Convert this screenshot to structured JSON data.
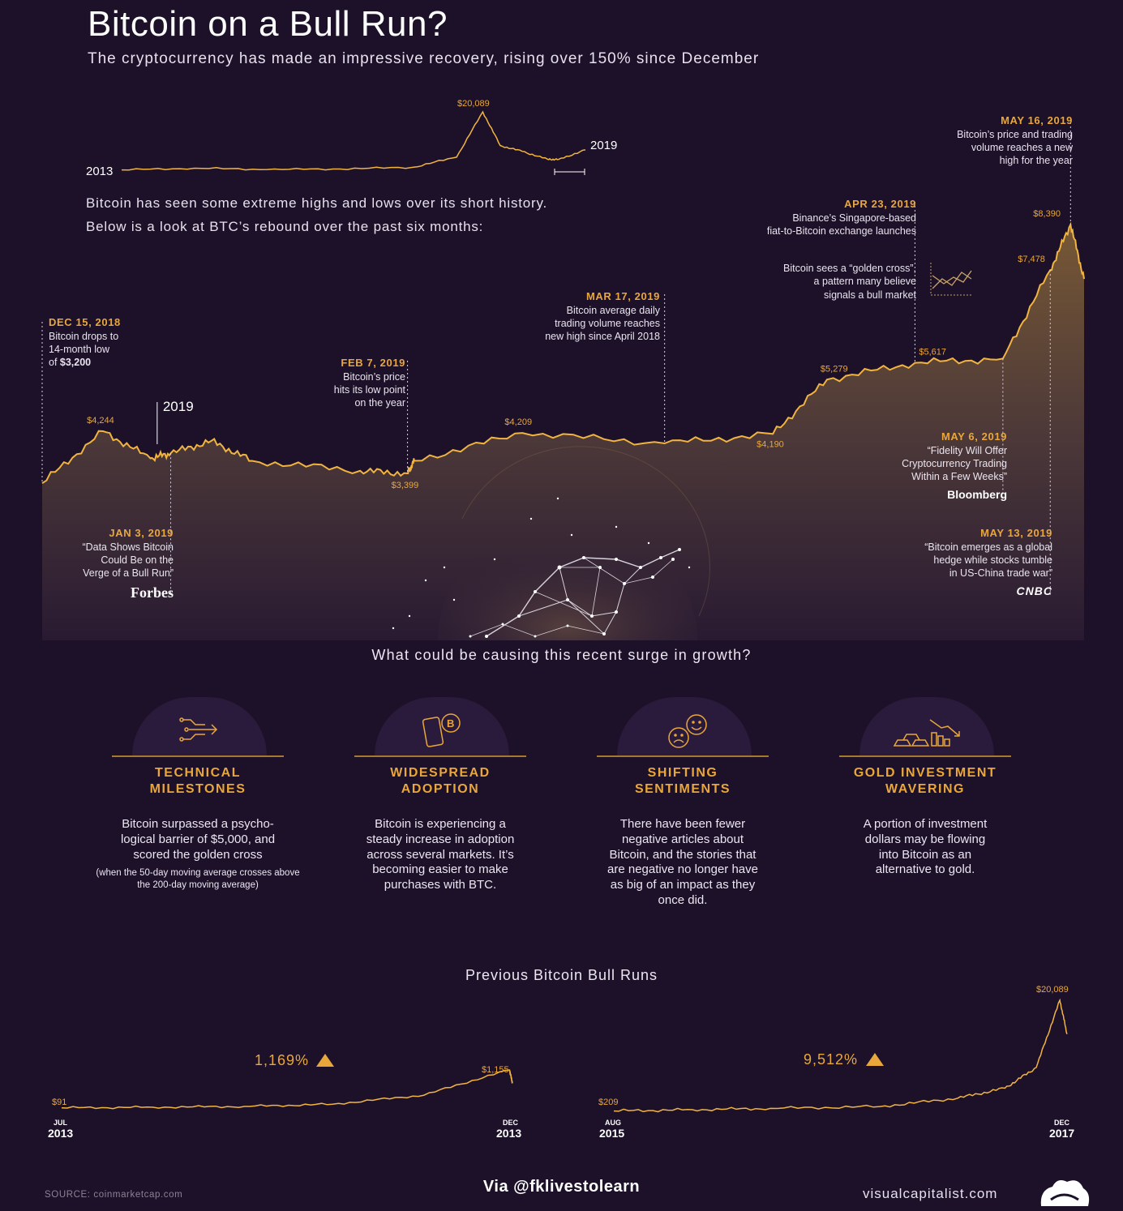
{
  "header": {
    "title": "Bitcoin on a Bull Run?",
    "subtitle": "The cryptocurrency has made an impressive recovery, rising over 150% since December"
  },
  "intro": {
    "line1": "Bitcoin has seen some extreme highs and lows over its short history.",
    "line2": "Below is a look at BTC’s rebound over the past six months:"
  },
  "overview_labels": {
    "start": "2013",
    "end": "2019",
    "peak": "$20,089"
  },
  "main_labels": {
    "year_marker": "2019",
    "price_labels": [
      "$4,244",
      "$3,399",
      "$4,209",
      "$4,190",
      "$5,279",
      "$5,617",
      "$7,478",
      "$8,390"
    ]
  },
  "events": [
    {
      "date": "DEC 15, 2018",
      "text": "Bitcoin drops to\n14-month low\nof ",
      "bold": "$3,200"
    },
    {
      "date": "JAN 3, 2019",
      "text": "“Data Shows Bitcoin\nCould Be on the\nVerge of a Bull Run”",
      "source": "Forbes"
    },
    {
      "date": "FEB 7, 2019",
      "text": "Bitcoin’s price\nhits its low point\non the year"
    },
    {
      "date": "MAR 17, 2019",
      "text": "Bitcoin average daily\ntrading volume reaches\nnew high since April 2018"
    },
    {
      "date": "APR 23, 2019",
      "text": "Binance’s Singapore-based\nfiat-to-Bitcoin exchange launches"
    },
    {
      "date": "",
      "text": "Bitcoin sees a “golden cross”,\na pattern many believe\nsignals a bull market"
    },
    {
      "date": "MAY 6, 2019",
      "text": "“Fidelity Will Offer\nCryptocurrency Trading\nWithin a Few Weeks”",
      "source": "Bloomberg"
    },
    {
      "date": "MAY 13, 2019",
      "text": "“Bitcoin emerges as a global\nhedge while stocks tumble\nin US-China trade war”",
      "source": "CNBC"
    },
    {
      "date": "MAY 16, 2019",
      "text": "Bitcoin’s price and trading\nvolume reaches a new\nhigh for the year"
    }
  ],
  "question": "What could be causing this recent surge in growth?",
  "causes": [
    {
      "icon": "circuit-arrow-icon",
      "title": "TECHNICAL\nMILESTONES",
      "desc": "Bitcoin surpassed a psycho-\nlogical barrier of $5,000, and\nscored the golden cross",
      "note": "(when the 50-day moving\naverage crosses above the\n200-day moving average)"
    },
    {
      "icon": "phone-bitcoin-icon",
      "title": "WIDESPREAD\nADOPTION",
      "desc": "Bitcoin is experiencing a\nsteady increase in adoption\nacross several markets. It’s\nbecoming easier to make\npurchases with BTC."
    },
    {
      "icon": "faces-icon",
      "title": "SHIFTING\nSENTIMENTS",
      "desc": "There have been fewer\nnegative articles about\nBitcoin, and the stories that\nare negative no longer have\nas big of an impact as they\nonce did."
    },
    {
      "icon": "gold-bars-icon",
      "title": "GOLD INVESTMENT\nWAVERING",
      "desc": "A portion of investment\ndollars may be flowing\ninto Bitcoin as an\nalternative to gold."
    }
  ],
  "previous": {
    "title": "Previous Bitcoin Bull Runs",
    "runs": [
      {
        "gain": "1,169%",
        "start_label": "$91",
        "end_label": "$1,155",
        "start_month": "JUL",
        "start_year": "2013",
        "end_month": "DEC",
        "end_year": "2013"
      },
      {
        "gain": "9,512%",
        "start_label": "$209",
        "end_label": "$20,089",
        "start_month": "AUG",
        "start_year": "2015",
        "end_month": "DEC",
        "end_year": "2017"
      }
    ]
  },
  "footer": {
    "source": "SOURCE: coinmarketcap.com",
    "via": "Via @fklivestolearn",
    "brand": "visualcapitalist.com"
  },
  "colors": {
    "background": "#1c1128",
    "accent": "#e9a73b",
    "line": "#f2b440",
    "area_top": "#6a4f36"
  },
  "chart_data": [
    {
      "type": "line",
      "x": [
        2013,
        2014,
        2015,
        2016,
        2017,
        2017.6,
        2017.96,
        2018.2,
        2018.5,
        2018.85,
        2019.0,
        2019.37
      ],
      "values": [
        100,
        700,
        250,
        430,
        1000,
        4500,
        20089,
        8500,
        6500,
        3800,
        3700,
        7000
      ]
    },
    {
      "type": "area",
      "x": [
        "2018-12-15",
        "2018-12-24",
        "2018-12-31",
        "2019-01-03",
        "2019-01-09",
        "2019-01-15",
        "2019-01-31",
        "2019-02-07",
        "2019-02-08",
        "2019-02-24",
        "2019-03-17",
        "2019-04-02",
        "2019-04-10",
        "2019-04-23",
        "2019-05-06",
        "2019-05-13",
        "2019-05-16",
        "2019-05-18"
      ],
      "values": [
        3200,
        4244,
        3700,
        3800,
        4050,
        3650,
        3450,
        3399,
        3650,
        4209,
        4000,
        4190,
        5279,
        5617,
        5700,
        7478,
        8390,
        7300
      ]
    },
    {
      "type": "line",
      "x": [
        "2013-07",
        "2013-08",
        "2013-09",
        "2013-10",
        "2013-11",
        "2013-11-30",
        "2013-12"
      ],
      "values": [
        91,
        105,
        125,
        180,
        420,
        1155,
        760
      ]
    },
    {
      "type": "line",
      "x": [
        "2015-08",
        "2016-01",
        "2016-06",
        "2017-01",
        "2017-06",
        "2017-09",
        "2017-11",
        "2017-12-17",
        "2017-12-31"
      ],
      "values": [
        209,
        430,
        670,
        1000,
        2500,
        4300,
        8000,
        20089,
        14000
      ]
    }
  ]
}
